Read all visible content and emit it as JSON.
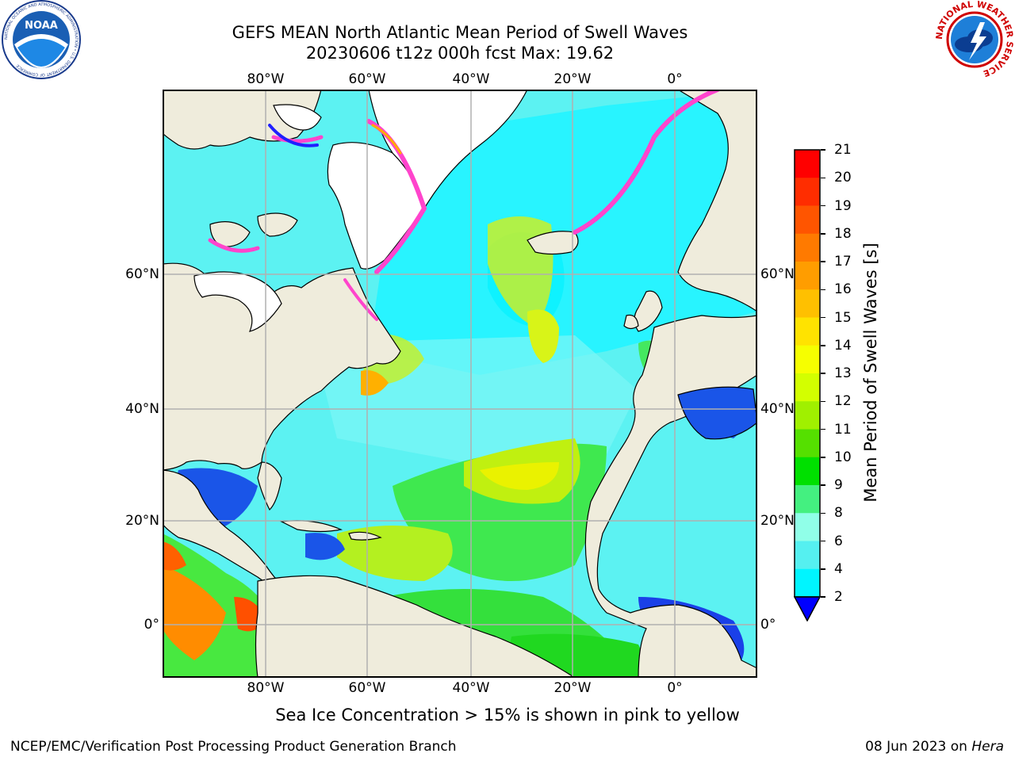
{
  "header": {
    "title_line1": "GEFS MEAN North Atlantic Mean Period of Swell Waves",
    "title_line2": "20230606 t12z 000h fcst   Max: 19.62"
  },
  "logos": {
    "noaa": {
      "center_text": "NOAA",
      "ring_text": "NATIONAL OCEANIC AND ATMOSPHERIC ADMINISTRATION • U.S. DEPARTMENT OF COMMERCE",
      "icon": "noaa-logo"
    },
    "nws": {
      "ring_text": "NATIONAL WEATHER SERVICE",
      "icon": "nws-logo"
    }
  },
  "map": {
    "lon_labels": [
      "80°W",
      "60°W",
      "40°W",
      "20°W",
      "0°"
    ],
    "lat_labels": [
      "60°N",
      "40°N",
      "20°N",
      "0°"
    ],
    "colors": {
      "land": "#efecdc",
      "ice_free": "#ffffff",
      "grid": "#b0b0b0",
      "coast": "#000000"
    }
  },
  "colorbar": {
    "label": "Mean Period of Swell Waves [s]",
    "ticks": [
      "21",
      "20",
      "19",
      "18",
      "17",
      "16",
      "15",
      "14",
      "13",
      "12",
      "11",
      "10",
      "9",
      "8",
      "6",
      "4",
      "2"
    ],
    "bands": [
      "#ff0000",
      "#ff2d00",
      "#ff5500",
      "#ff7a00",
      "#ff9d00",
      "#ffc000",
      "#ffe300",
      "#f6ff00",
      "#d3ff00",
      "#a0f000",
      "#55e000",
      "#00e000",
      "#44f080",
      "#90ffe8",
      "#55f0f0",
      "#00f5ff",
      "#00d8ff",
      "#0076ff",
      "#0000ff"
    ]
  },
  "ice_note": "Sea Ice Concentration > 15% is shown in pink to yellow",
  "footer": {
    "left": "NCEP/EMC/Verification Post Processing Product Generation Branch",
    "date": "08 Jun 2023",
    "on": "on",
    "machine": "Hera"
  }
}
